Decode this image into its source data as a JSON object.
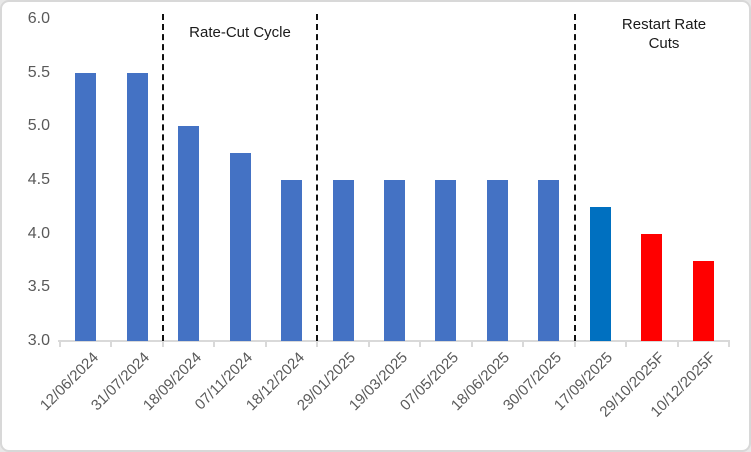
{
  "chart_data": {
    "type": "bar",
    "title": "",
    "xlabel": "",
    "ylabel": "",
    "categories": [
      "12/06/2024",
      "31/07/2024",
      "18/09/2024",
      "07/11/2024",
      "18/12/2024",
      "29/01/2025",
      "19/03/2025",
      "07/05/2025",
      "18/06/2025",
      "30/07/2025",
      "17/09/2025",
      "29/10/2025F",
      "10/12/2025F"
    ],
    "values": [
      5.5,
      5.5,
      5.0,
      4.75,
      4.5,
      4.5,
      4.5,
      4.5,
      4.5,
      4.5,
      4.25,
      4.0,
      3.75
    ],
    "bar_colors": [
      "#4472C4",
      "#4472C4",
      "#4472C4",
      "#4472C4",
      "#4472C4",
      "#4472C4",
      "#4472C4",
      "#4472C4",
      "#4472C4",
      "#4472C4",
      "#0070C0",
      "#FF0000",
      "#FF0000"
    ],
    "ylim": [
      3.0,
      6.0
    ],
    "ytick_step": 0.5,
    "y_ticks": [
      "6.0",
      "5.5",
      "5.0",
      "4.5",
      "4.0",
      "3.5",
      "3.0"
    ],
    "grid": "off",
    "legend": "none",
    "separator_indices": [
      2,
      5,
      10
    ],
    "annotations": [
      {
        "label": "Rate-Cut Cycle",
        "region_categories": [
          "18/09/2024",
          "07/11/2024",
          "18/12/2024"
        ]
      },
      {
        "label": "Restart Rate Cuts",
        "region_categories": [
          "17/09/2025",
          "29/10/2025F",
          "10/12/2025F"
        ]
      }
    ]
  },
  "colors": {
    "bar_default": "#4472C4",
    "bar_highlight": "#0070C0",
    "bar_forecast": "#FF0000",
    "axis_text": "#595959",
    "axis_line": "#D9D9D9",
    "separator": "#111111",
    "border": "#D8D8D8"
  }
}
